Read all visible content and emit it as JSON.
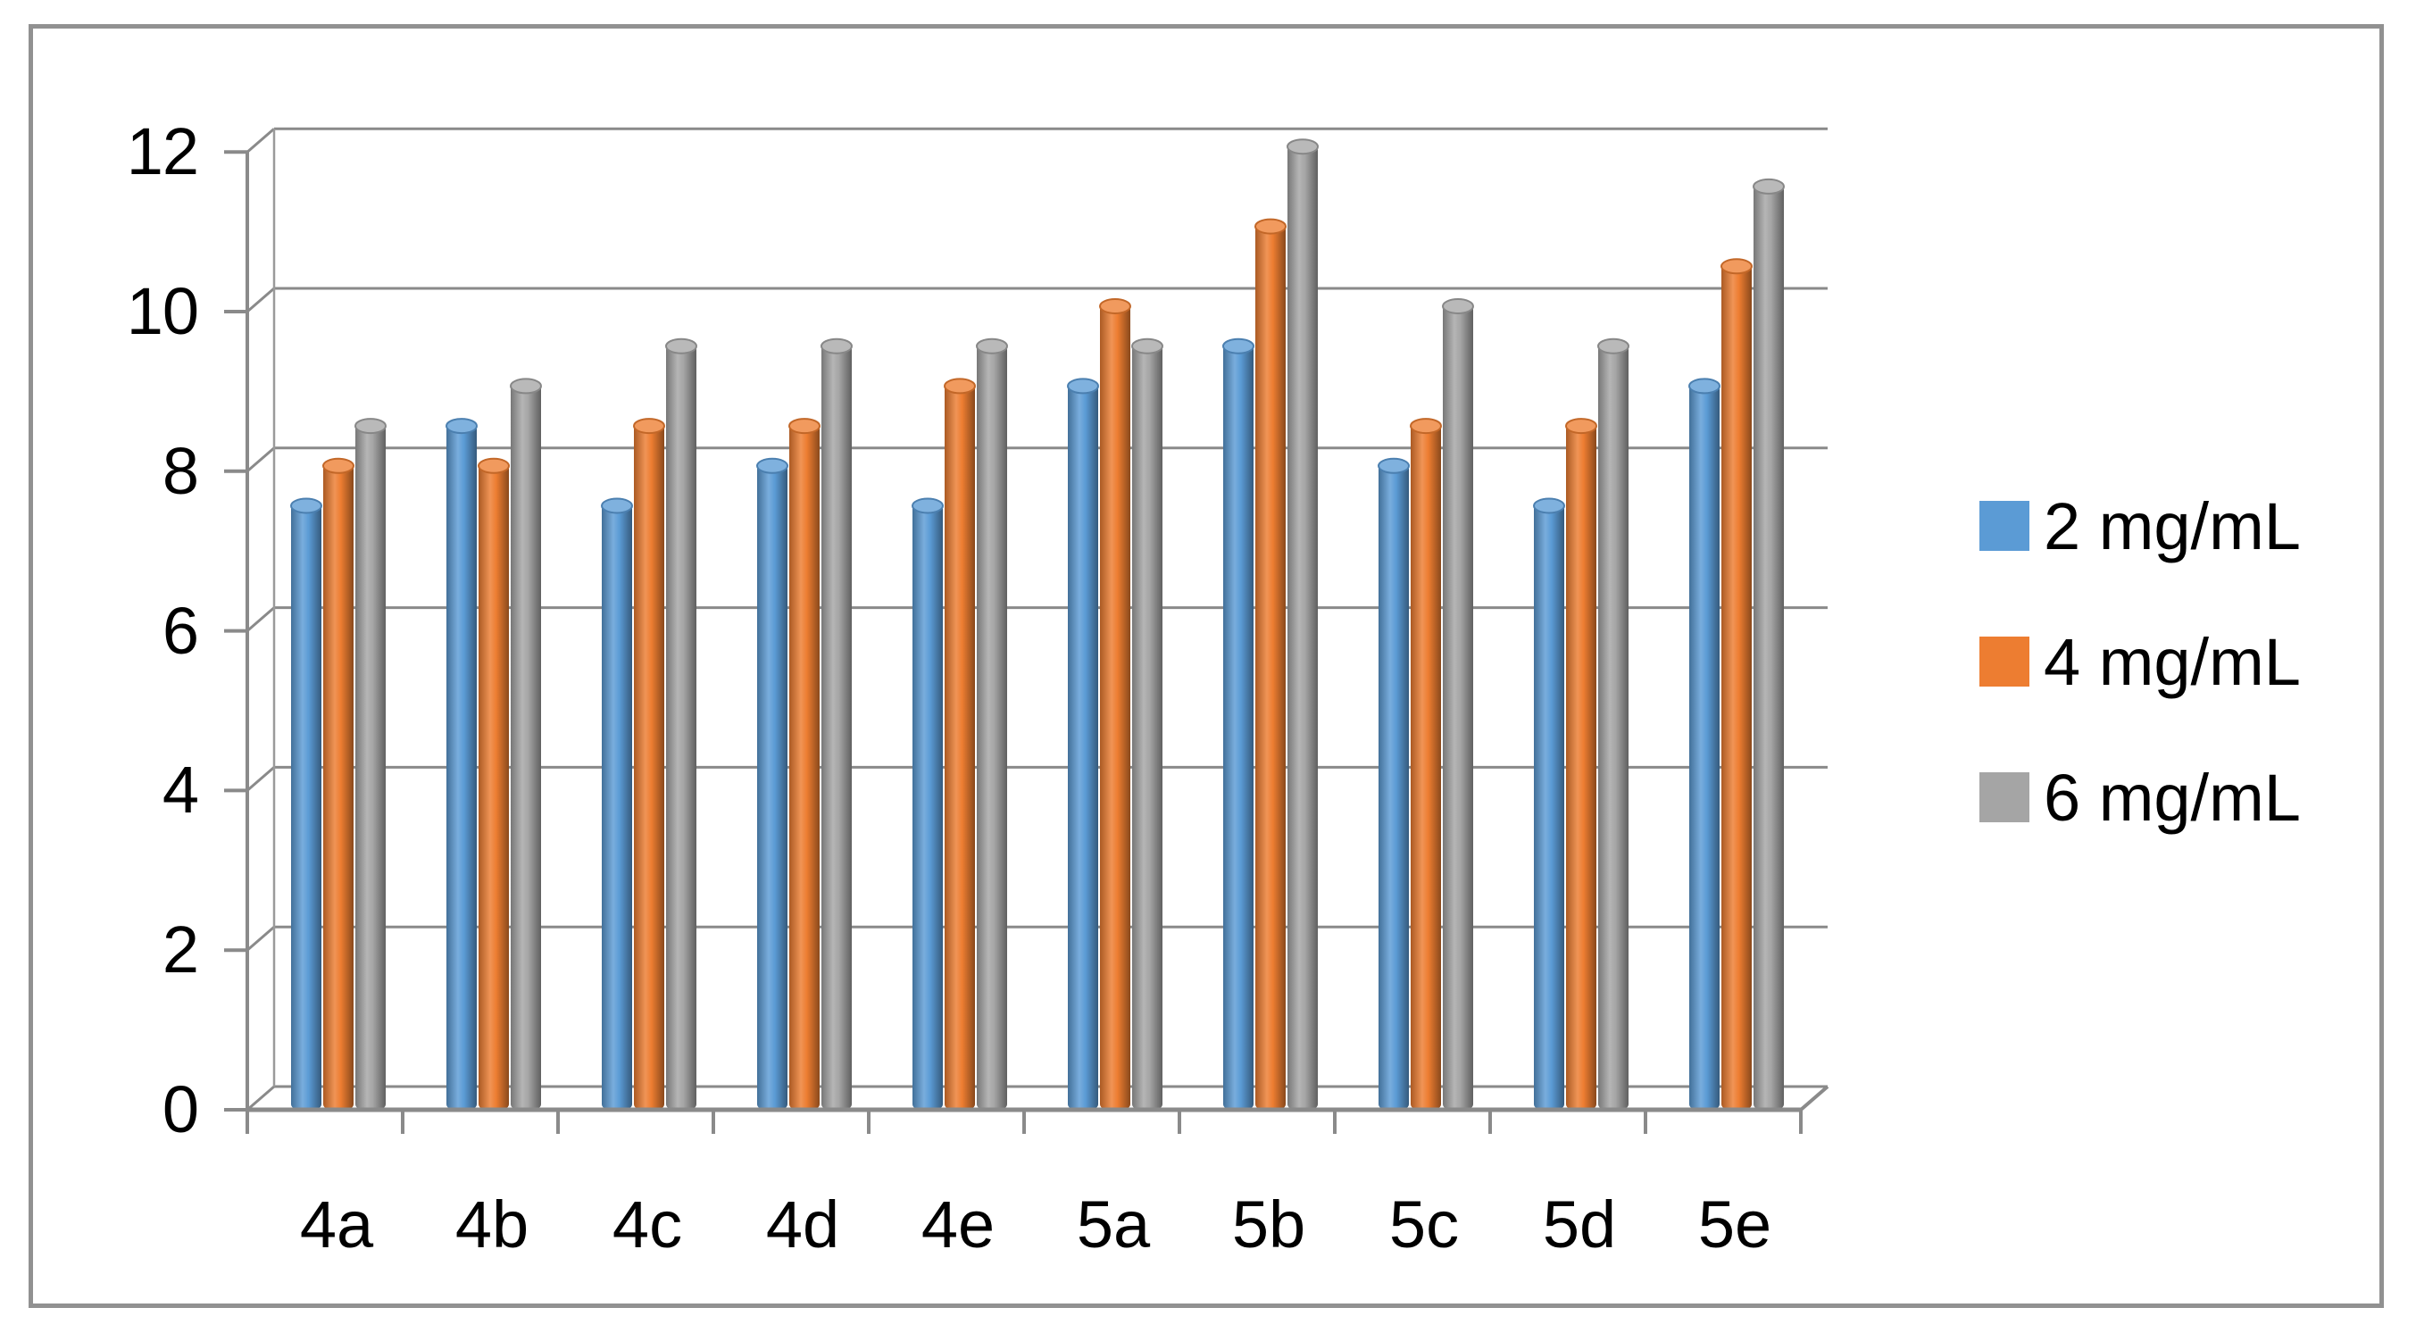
{
  "figure": {
    "background": "#ffffff",
    "border_color": "#919191",
    "grid_color": "#8a8a8a",
    "text_color": "#000000"
  },
  "chart_data": {
    "type": "bar",
    "subtype": "3d-cylinder",
    "title": "",
    "xlabel": "",
    "ylabel": "",
    "categories": [
      "4a",
      "4b",
      "4c",
      "4d",
      "4e",
      "5a",
      "5b",
      "5c",
      "5d",
      "5e"
    ],
    "series": [
      {
        "name": "2 mg/mL",
        "color": "#5B9BD5",
        "values": [
          7.5,
          8.5,
          7.5,
          8,
          7.5,
          9,
          9.5,
          8,
          7.5,
          9
        ]
      },
      {
        "name": "4 mg/mL",
        "color": "#ED7D31",
        "values": [
          8,
          8,
          8.5,
          8.5,
          9,
          10,
          11,
          8.5,
          8.5,
          10.5
        ]
      },
      {
        "name": "6 mg/mL",
        "color": "#A5A5A5",
        "values": [
          8.5,
          9,
          9.5,
          9.5,
          9.5,
          9.5,
          12,
          10,
          9.5,
          11.5
        ]
      }
    ],
    "yticks": [
      0,
      2,
      4,
      6,
      8,
      10,
      12
    ],
    "ylim": [
      0,
      12
    ],
    "grid": true,
    "legend_position": "right"
  }
}
